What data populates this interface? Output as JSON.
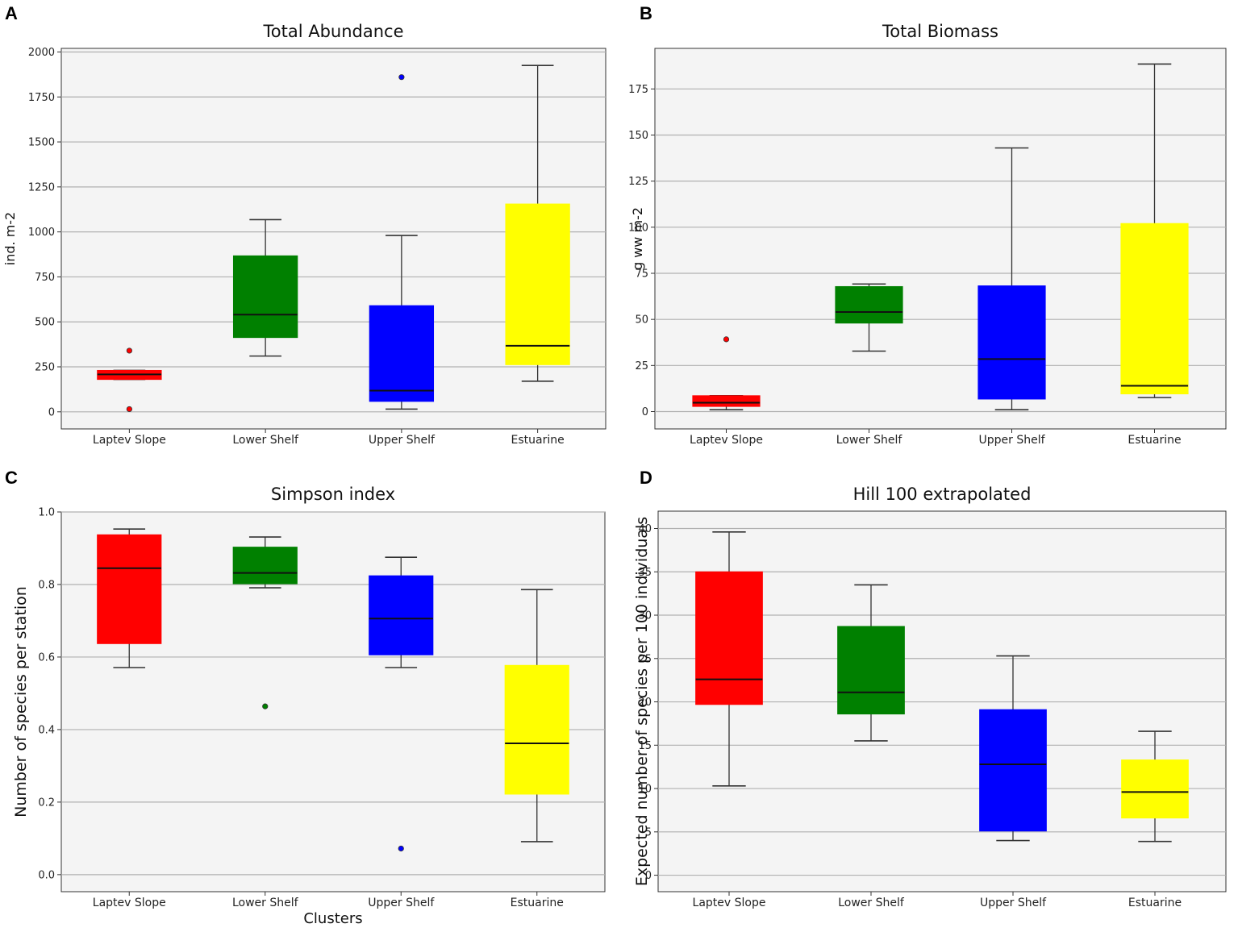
{
  "chart_data": [
    {
      "panel": "A",
      "type": "box",
      "title": "Total Abundance",
      "xlabel": "",
      "ylabel": "ind. m-2",
      "categories": [
        "Laptev Slope",
        "Lower Shelf",
        "Upper Shelf",
        "Estuarine"
      ],
      "colors": [
        "#ff0000",
        "#008000",
        "#0000ff",
        "#ffff00"
      ],
      "ylim": [
        -95,
        2020
      ],
      "yticks": [
        0,
        250,
        500,
        750,
        1000,
        1250,
        1500,
        1750,
        2000
      ],
      "boxes": [
        {
          "whisker_low": 180,
          "q1": 180,
          "median": 208,
          "q3": 230,
          "whisker_high": 230,
          "outliers": [
            15,
            340
          ]
        },
        {
          "whisker_low": 310,
          "q1": 413,
          "median": 540,
          "q3": 867,
          "whisker_high": 1068,
          "outliers": []
        },
        {
          "whisker_low": 15,
          "q1": 58,
          "median": 118,
          "q3": 590,
          "whisker_high": 980,
          "outliers": [
            1860
          ]
        },
        {
          "whisker_low": 170,
          "q1": 262,
          "median": 367,
          "q3": 1155,
          "whisker_high": 1925,
          "outliers": []
        }
      ]
    },
    {
      "panel": "B",
      "type": "box",
      "title": "Total Biomass",
      "xlabel": "",
      "ylabel": "g ww m-2",
      "categories": [
        "Laptev Slope",
        "Lower Shelf",
        "Upper Shelf",
        "Estuarine"
      ],
      "colors": [
        "#ff0000",
        "#008000",
        "#0000ff",
        "#ffff00"
      ],
      "ylim": [
        -9.4,
        197
      ],
      "yticks": [
        0,
        25,
        50,
        75,
        100,
        125,
        150,
        175
      ],
      "boxes": [
        {
          "whisker_low": 1,
          "q1": 2.8,
          "median": 4.8,
          "q3": 8.6,
          "whisker_high": 8.6,
          "outliers": [
            39.2
          ]
        },
        {
          "whisker_low": 32.8,
          "q1": 48,
          "median": 54,
          "q3": 67.8,
          "whisker_high": 69.2,
          "outliers": []
        },
        {
          "whisker_low": 1,
          "q1": 6.8,
          "median": 28.5,
          "q3": 68.2,
          "whisker_high": 143,
          "outliers": []
        },
        {
          "whisker_low": 7.6,
          "q1": 9.6,
          "median": 14,
          "q3": 102,
          "whisker_high": 188.5,
          "outliers": []
        }
      ]
    },
    {
      "panel": "C",
      "type": "box",
      "title": "Simpson index",
      "xlabel": "Clusters",
      "ylabel": "Number of species per station",
      "categories": [
        "Laptev Slope",
        "Lower Shelf",
        "Upper Shelf",
        "Estuarine"
      ],
      "colors": [
        "#ff0000",
        "#008000",
        "#0000ff",
        "#ffff00"
      ],
      "ylim": [
        -0.047,
        1.0
      ],
      "yticks": [
        0.0,
        0.2,
        0.4,
        0.6,
        0.8,
        1.0
      ],
      "boxes": [
        {
          "whisker_low": 0.571,
          "q1": 0.637,
          "median": 0.845,
          "q3": 0.937,
          "whisker_high": 0.953,
          "outliers": []
        },
        {
          "whisker_low": 0.791,
          "q1": 0.802,
          "median": 0.832,
          "q3": 0.903,
          "whisker_high": 0.931,
          "outliers": [
            0.464
          ]
        },
        {
          "whisker_low": 0.571,
          "q1": 0.606,
          "median": 0.706,
          "q3": 0.824,
          "whisker_high": 0.875,
          "outliers": [
            0.072
          ]
        },
        {
          "whisker_low": 0.091,
          "q1": 0.222,
          "median": 0.362,
          "q3": 0.577,
          "whisker_high": 0.786,
          "outliers": []
        }
      ]
    },
    {
      "panel": "D",
      "type": "box",
      "title": "Hill 100 extrapolated",
      "xlabel": "",
      "ylabel": "Expected number of species per 100 individuals",
      "categories": [
        "Laptev Slope",
        "Lower Shelf",
        "Upper Shelf",
        "Estuarine"
      ],
      "colors": [
        "#ff0000",
        "#008000",
        "#0000ff",
        "#ffff00"
      ],
      "ylim": [
        -1.9,
        42
      ],
      "yticks": [
        0,
        5,
        10,
        15,
        20,
        25,
        30,
        35,
        40
      ],
      "boxes": [
        {
          "whisker_low": 10.3,
          "q1": 19.7,
          "median": 22.6,
          "q3": 35,
          "whisker_high": 39.6,
          "outliers": []
        },
        {
          "whisker_low": 15.5,
          "q1": 18.6,
          "median": 21.1,
          "q3": 28.7,
          "whisker_high": 33.5,
          "outliers": []
        },
        {
          "whisker_low": 4,
          "q1": 5.1,
          "median": 12.8,
          "q3": 19.1,
          "whisker_high": 25.3,
          "outliers": []
        },
        {
          "whisker_low": 3.9,
          "q1": 6.6,
          "median": 9.6,
          "q3": 13.3,
          "whisker_high": 16.6,
          "outliers": []
        }
      ]
    }
  ]
}
